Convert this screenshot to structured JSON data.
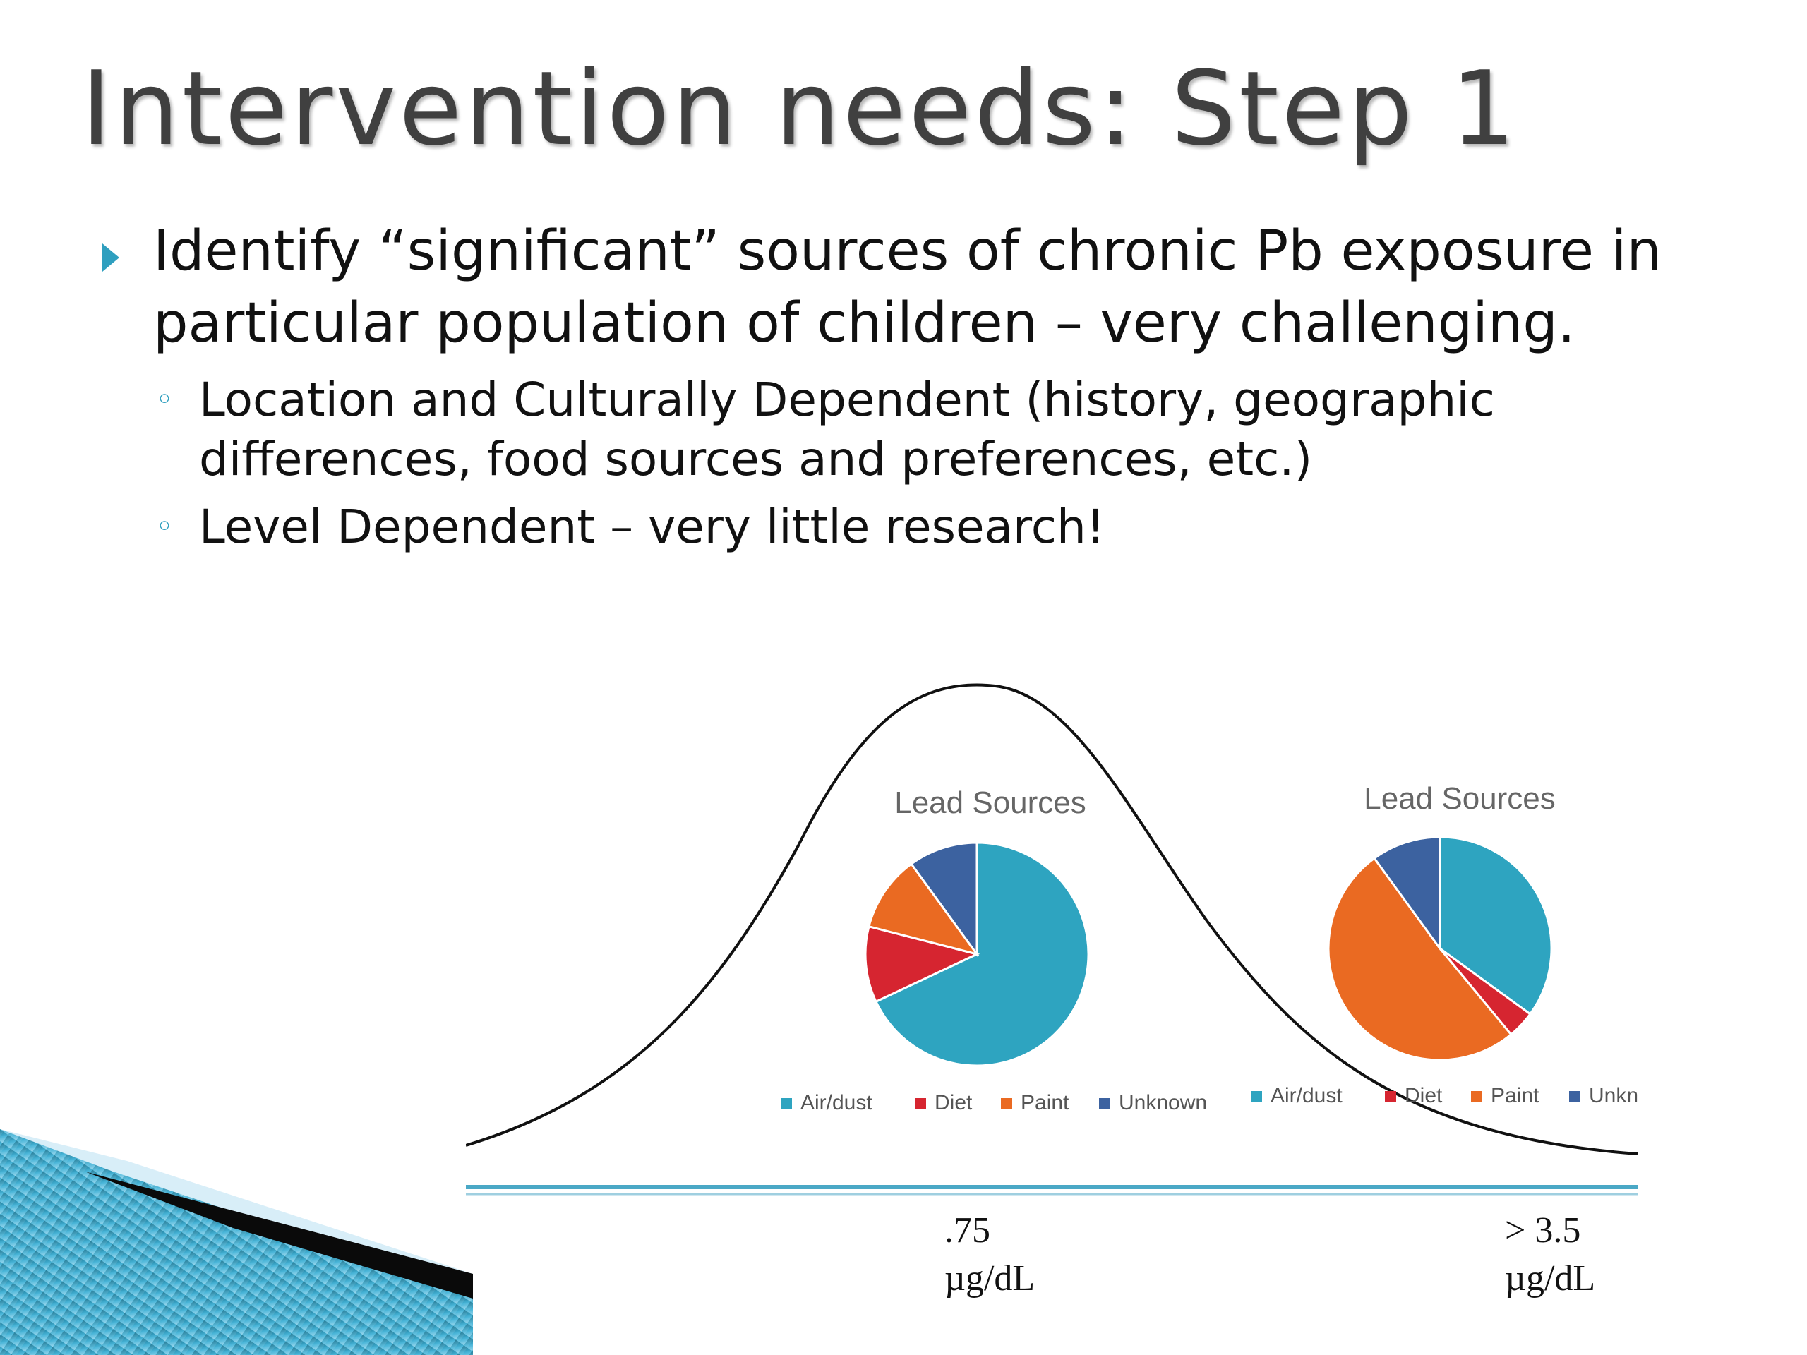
{
  "slide": {
    "title": "Intervention needs: Step 1",
    "bullets": [
      {
        "text": "Identify “significant” sources of chronic Pb exposure in particular population of children – very challenging."
      }
    ],
    "sub_bullets": [
      {
        "text": "Location and Culturally Dependent (history, geographic differences, food sources and preferences, etc.)"
      },
      {
        "text": "Level Dependent – very little research!"
      }
    ]
  },
  "colors": {
    "accent": "#2f9fbf",
    "air_dust": "#2ea4c0",
    "diet": "#d62530",
    "paint": "#ea6a22",
    "unknown": "#3c62a0"
  },
  "chart_data": [
    {
      "type": "pie",
      "title": "Lead Sources",
      "categories": [
        "Air/dust",
        "Diet",
        "Paint",
        "Unknown"
      ],
      "values": [
        68,
        11,
        11,
        10
      ],
      "legend": "bottom",
      "axis_label": ".75 µg/dL"
    },
    {
      "type": "pie",
      "title": "Lead Sources",
      "categories": [
        "Air/dust",
        "Diet",
        "Paint",
        "Unknown"
      ],
      "values": [
        35,
        4,
        51,
        10
      ],
      "legend": "bottom",
      "axis_label": "> 3.5 µg/dL"
    }
  ],
  "axis": {
    "left_label_value": ".75",
    "left_label_unit": "µg/dL",
    "right_label_value": "> 3.5",
    "right_label_unit": "µg/dL"
  }
}
